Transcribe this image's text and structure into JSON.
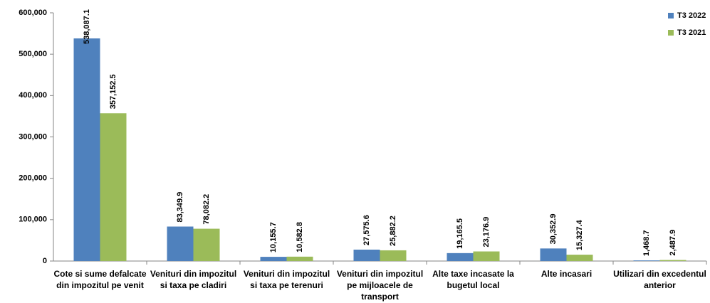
{
  "chart_data": {
    "type": "bar",
    "categories": [
      "Cote si sume defalcate din impozitul pe venit",
      "Venituri din impozitul si taxa pe cladiri",
      "Venituri din impozitul si taxa pe terenuri",
      "Venituri din impozitul pe mijloacele de transport",
      "Alte taxe incasate la bugetul local",
      "Alte incasari",
      "Utilizari din excedentul anterior"
    ],
    "series": [
      {
        "name": "T3 2022",
        "color": "#4f81bd",
        "values": [
          538087.1,
          83349.9,
          10155.7,
          27575.6,
          19165.5,
          30352.9,
          1468.7
        ],
        "value_labels": [
          "538,087.1",
          "83,349.9",
          "10,155.7",
          "27,575.6",
          "19,165.5",
          "30,352.9",
          "1,468.7"
        ]
      },
      {
        "name": "T3 2021",
        "color": "#9bbb59",
        "values": [
          357152.5,
          78082.2,
          10582.8,
          25882.2,
          23176.9,
          15327.4,
          2487.9
        ],
        "value_labels": [
          "357,152.5",
          "78,082.2",
          "10,582.8",
          "25,882.2",
          "23,176.9",
          "15,327.4",
          "2,487.9"
        ]
      }
    ],
    "ylim": [
      0,
      600000
    ],
    "yticks": [
      {
        "value": 0,
        "label": "0"
      },
      {
        "value": 100000,
        "label": "100,000"
      },
      {
        "value": 200000,
        "label": "200,000"
      },
      {
        "value": 300000,
        "label": "300,000"
      },
      {
        "value": 400000,
        "label": "400,000"
      },
      {
        "value": 500000,
        "label": "500,000"
      },
      {
        "value": 600000,
        "label": "600,000"
      }
    ],
    "legend": "top-right"
  }
}
